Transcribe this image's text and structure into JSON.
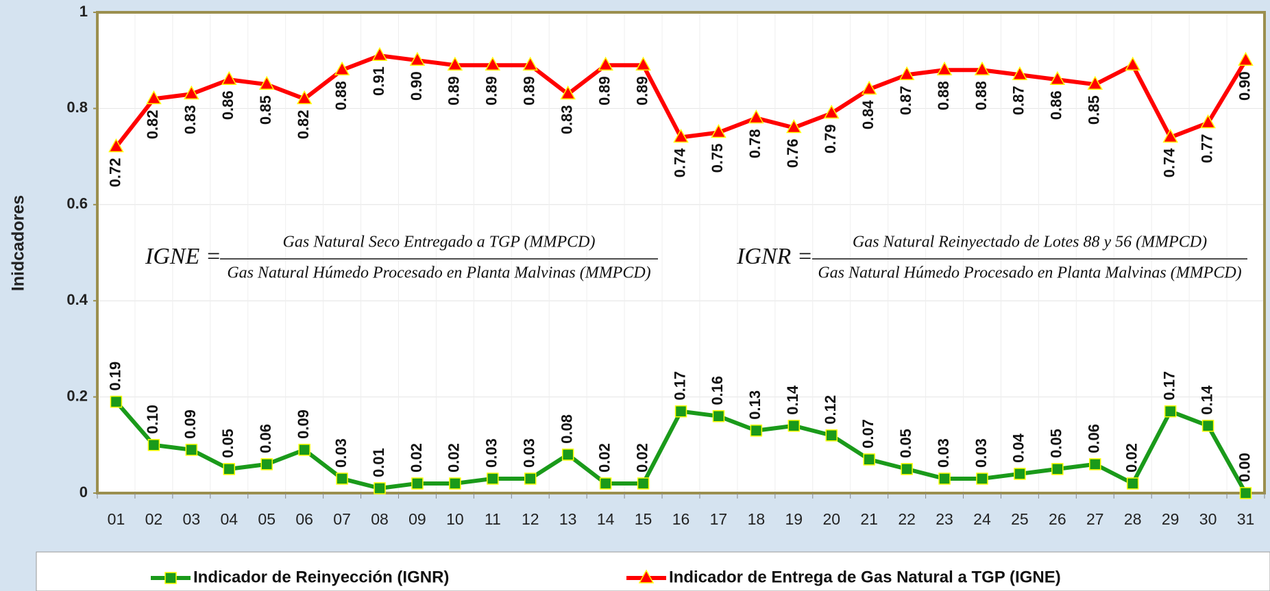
{
  "chart_data": {
    "type": "line",
    "y_axis_label": "Inidcadores",
    "categories": [
      "01",
      "02",
      "03",
      "04",
      "05",
      "06",
      "07",
      "08",
      "09",
      "10",
      "11",
      "12",
      "13",
      "14",
      "15",
      "16",
      "17",
      "18",
      "19",
      "20",
      "21",
      "22",
      "23",
      "24",
      "25",
      "26",
      "27",
      "28",
      "29",
      "30",
      "31"
    ],
    "series": [
      {
        "name": "Indicador de Reinyección (IGNR)",
        "color": "#1a9a1a",
        "marker": "square",
        "label_side": "above",
        "values": [
          0.19,
          0.1,
          0.09,
          0.05,
          0.06,
          0.09,
          0.03,
          0.01,
          0.02,
          0.02,
          0.03,
          0.03,
          0.08,
          0.02,
          0.02,
          0.17,
          0.16,
          0.13,
          0.14,
          0.12,
          0.07,
          0.05,
          0.03,
          0.03,
          0.04,
          0.05,
          0.06,
          0.02,
          0.17,
          0.14,
          0.0
        ],
        "value_labels": [
          "0.19",
          "0.10",
          "0.09",
          "0.05",
          "0.06",
          "0.09",
          "0.03",
          "0.01",
          "0.02",
          "0.02",
          "0.03",
          "0.03",
          "0.08",
          "0.02",
          "0.02",
          "0.17",
          "0.16",
          "0.13",
          "0.14",
          "0.12",
          "0.07",
          "0.05",
          "0.03",
          "0.03",
          "0.04",
          "0.05",
          "0.06",
          "0.02",
          "0.17",
          "0.14",
          "0.00"
        ]
      },
      {
        "name": "Indicador de Entrega de Gas Natural a TGP (IGNE)",
        "color": "#ff0000",
        "marker": "triangle",
        "label_side": "below",
        "values": [
          0.72,
          0.82,
          0.83,
          0.86,
          0.85,
          0.82,
          0.88,
          0.91,
          0.9,
          0.89,
          0.89,
          0.89,
          0.83,
          0.89,
          0.89,
          0.74,
          0.75,
          0.78,
          0.76,
          0.79,
          0.84,
          0.87,
          0.88,
          0.88,
          0.87,
          0.86,
          0.85,
          0.89,
          0.74,
          0.77,
          0.9
        ],
        "value_labels": [
          "0.72",
          "0.82",
          "0.83",
          "0.86",
          "0.85",
          "0.82",
          "0.88",
          "0.91",
          "0.90",
          "0.89",
          "0.89",
          "0.89",
          "0.83",
          "0.89",
          "0.89",
          "0.74",
          "0.75",
          "0.78",
          "0.76",
          "0.79",
          "0.84",
          "0.87",
          "0.88",
          "0.88",
          "0.87",
          "0.86",
          "0.85",
          null,
          "0.74",
          "0.77",
          "0.90"
        ]
      }
    ],
    "ylim": [
      0,
      1
    ],
    "yticks": [
      0,
      {
        "value": 0.2,
        "label": "0.2"
      },
      {
        "value": 0.4,
        "label": "0.4"
      },
      {
        "value": 0.6,
        "label": "0.6"
      },
      {
        "value": 0.8,
        "label": "0.8"
      },
      1
    ],
    "grid": true,
    "legend": "bottom",
    "formulas": [
      {
        "lhs": "IGNE =",
        "numerator": "Gas Natural Seco Entregado a TGP (MMPCD)",
        "denominator": "Gas Natural Húmedo Procesado en Planta Malvinas (MMPCD)"
      },
      {
        "lhs": "IGNR =",
        "numerator": "Gas Natural Reinyectado de Lotes 88 y 56 (MMPCD)",
        "denominator": "Gas Natural Húmedo Procesado en Planta Malvinas (MMPCD)"
      }
    ]
  }
}
